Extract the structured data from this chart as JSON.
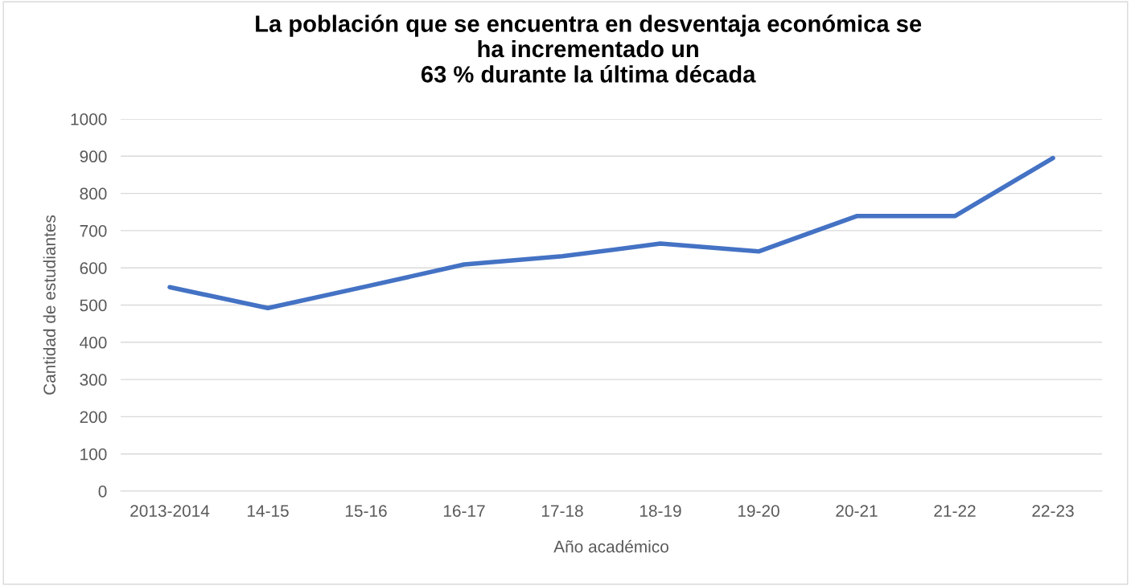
{
  "chart_data": {
    "type": "line",
    "title": "La población que se encuentra en desventaja económica se\nha incrementado un\n63 % durante la última década",
    "xlabel": "Año académico",
    "ylabel": "Cantidad de estudiantes",
    "categories": [
      "2013-2014",
      "14-15",
      "15-16",
      "16-17",
      "17-18",
      "18-19",
      "19-20",
      "20-21",
      "21-22",
      "22-23"
    ],
    "series": [
      {
        "color": "#4472c4",
        "values": [
          548,
          492,
          550,
          609,
          631,
          665,
          644,
          739,
          739,
          895
        ]
      }
    ],
    "ylim": [
      0,
      1000
    ],
    "yticks": [
      0,
      100,
      200,
      300,
      400,
      500,
      600,
      700,
      800,
      900,
      1000
    ],
    "grid": "y",
    "marker": "none",
    "line_style": "solid"
  }
}
